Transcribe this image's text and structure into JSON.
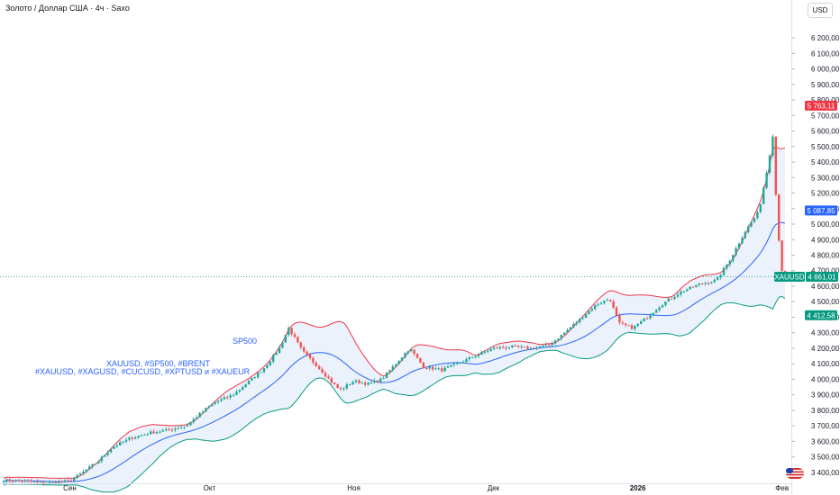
{
  "header": {
    "title": "Золото / Доллар США · 4ч · Saxo",
    "currency": "USD"
  },
  "annotations": {
    "sp500": "SP500",
    "line1": "XAUUSD, #SP500, #BRENT",
    "line2": "#XAUUSD, #XAGUSD, #CUCUSD, #XPTUSD и #XAUEUR"
  },
  "colors": {
    "up": "#26a69a",
    "down": "#ef5350",
    "upper_band": "#f23645",
    "middle_band": "#2962ff",
    "lower_band": "#089981",
    "band_fill": "#e3ecfb",
    "last_price": "#089981",
    "axis_text": "#131722",
    "crosshair": "#089981"
  },
  "chart_data": {
    "type": "candlestick",
    "symbol": "XAUUSD",
    "timeframe": "4ч",
    "ylim": [
      3330,
      6270
    ],
    "y_ticks": [
      3400,
      3500,
      3600,
      3700,
      3800,
      3900,
      4000,
      4100,
      4200,
      4300,
      4400,
      4500,
      4600,
      4700,
      4800,
      4900,
      5000,
      5100,
      5200,
      5300,
      5400,
      5500,
      5600,
      5700,
      5800,
      5900,
      6000,
      6100,
      6200
    ],
    "y_tick_labels": [
      "3 400,00",
      "3 500,00",
      "3 600,00",
      "3 700,00",
      "3 800,00",
      "3 900,00",
      "4 000,00",
      "4 100,00",
      "4 200,00",
      "4 300,00",
      "4 400,00",
      "4 500,00",
      "4 600,00",
      "4 700,00",
      "4 800,00",
      "4 900,00",
      "5 000,00",
      "5 100,00",
      "5 200,00",
      "5 300,00",
      "5 400,00",
      "5 500,00",
      "5 600,00",
      "5 700,00",
      "5 800,00",
      "5 900,00",
      "6 000,00",
      "6 100,00",
      "6 200,00"
    ],
    "x_labels": [
      {
        "label": "Сен",
        "date": "2025-09-01"
      },
      {
        "label": "Окт",
        "date": "2025-10-01"
      },
      {
        "label": "Ноя",
        "date": "2025-11-01"
      },
      {
        "label": "Дек",
        "date": "2025-12-01"
      },
      {
        "label": "2026",
        "date": "2026-01-01"
      },
      {
        "label": "Фев",
        "date": "2026-02-01"
      }
    ],
    "x_range": [
      "2025-08-17",
      "2026-02-03"
    ],
    "price_series": [
      [
        "2025-08-17",
        3350
      ],
      [
        "2025-08-22",
        3345
      ],
      [
        "2025-08-27",
        3330
      ],
      [
        "2025-09-01",
        3345
      ],
      [
        "2025-09-04",
        3405
      ],
      [
        "2025-09-07",
        3470
      ],
      [
        "2025-09-10",
        3560
      ],
      [
        "2025-09-14",
        3620
      ],
      [
        "2025-09-18",
        3655
      ],
      [
        "2025-09-22",
        3672
      ],
      [
        "2025-09-26",
        3700
      ],
      [
        "2025-09-29",
        3780
      ],
      [
        "2025-10-02",
        3850
      ],
      [
        "2025-10-06",
        3900
      ],
      [
        "2025-10-10",
        4000
      ],
      [
        "2025-10-13",
        4080
      ],
      [
        "2025-10-16",
        4200
      ],
      [
        "2025-10-18",
        4330
      ],
      [
        "2025-10-21",
        4180
      ],
      [
        "2025-10-24",
        4090
      ],
      [
        "2025-10-27",
        3990
      ],
      [
        "2025-10-29",
        3930
      ],
      [
        "2025-11-01",
        3990
      ],
      [
        "2025-11-04",
        3970
      ],
      [
        "2025-11-07",
        4000
      ],
      [
        "2025-11-10",
        4100
      ],
      [
        "2025-11-13",
        4200
      ],
      [
        "2025-11-16",
        4080
      ],
      [
        "2025-11-20",
        4060
      ],
      [
        "2025-11-24",
        4110
      ],
      [
        "2025-11-27",
        4150
      ],
      [
        "2025-12-01",
        4200
      ],
      [
        "2025-12-05",
        4210
      ],
      [
        "2025-12-09",
        4200
      ],
      [
        "2025-12-13",
        4220
      ],
      [
        "2025-12-17",
        4320
      ],
      [
        "2025-12-20",
        4400
      ],
      [
        "2025-12-23",
        4480
      ],
      [
        "2025-12-26",
        4520
      ],
      [
        "2025-12-28",
        4360
      ],
      [
        "2025-12-31",
        4330
      ],
      [
        "2026-01-03",
        4400
      ],
      [
        "2026-01-06",
        4480
      ],
      [
        "2026-01-10",
        4560
      ],
      [
        "2026-01-14",
        4610
      ],
      [
        "2026-01-18",
        4640
      ],
      [
        "2026-01-21",
        4780
      ],
      [
        "2026-01-24",
        4950
      ],
      [
        "2026-01-27",
        5080
      ],
      [
        "2026-01-29",
        5380
      ],
      [
        "2026-01-30",
        5580
      ],
      [
        "2026-01-31",
        5000
      ],
      [
        "2026-02-01",
        4700
      ],
      [
        "2026-02-02",
        4600
      ],
      [
        "2026-02-03",
        4661.01
      ]
    ],
    "indicators": {
      "bollinger_upper_last": 5763.11,
      "bollinger_middle_last": 5087.85,
      "bollinger_lower_last": 4412.58
    },
    "price_labels": {
      "upper": "5 763,11",
      "middle": "5 087,85",
      "symbol_tag": "XAUUSD",
      "last": "4 661,01",
      "lower": "4 412,58"
    },
    "last_price": 4661.01,
    "grid": false
  }
}
